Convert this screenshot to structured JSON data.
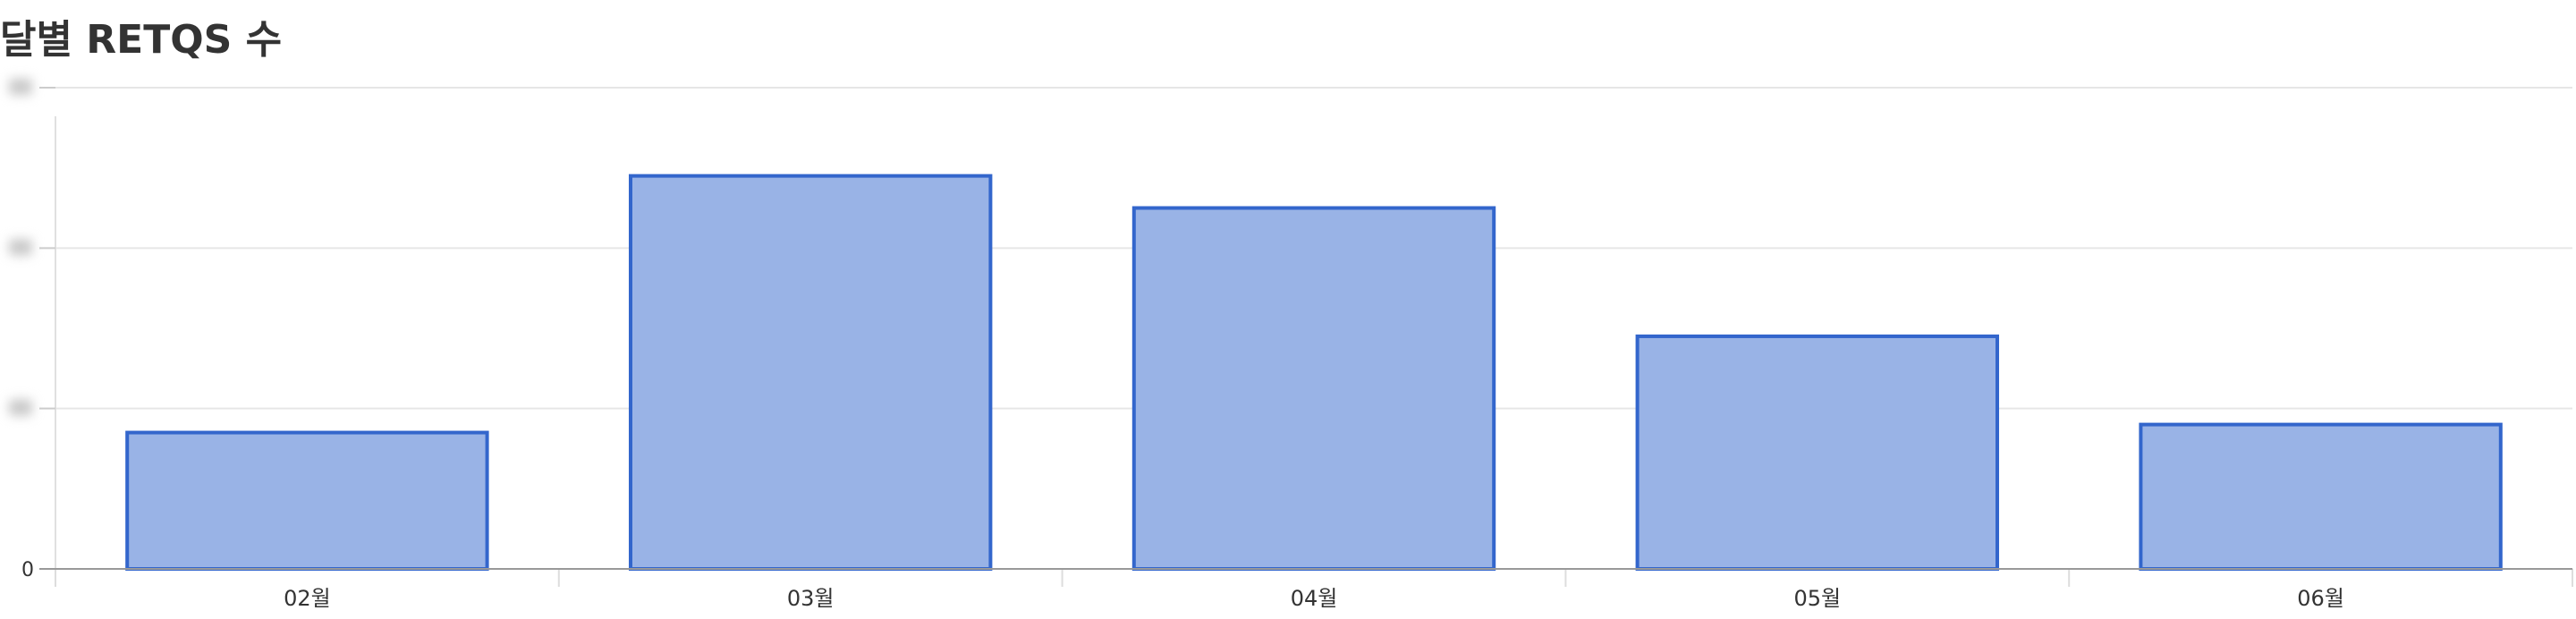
{
  "chart_data": {
    "type": "bar",
    "title": "달별 RETQS 수",
    "categories": [
      "02월",
      "03월",
      "04월",
      "05월",
      "06월"
    ],
    "series": [
      {
        "values": [
          17,
          49,
          45,
          29,
          18
        ]
      }
    ],
    "ylim": [
      0,
      60
    ],
    "y_ticks": [
      "0",
      "",
      "",
      ""
    ],
    "grid": true,
    "legend": "none",
    "colors": {
      "bar_fill": "#99b3e6",
      "bar_stroke": "#3366cc",
      "grid": "#e6e6e6",
      "axis": "#999999",
      "text": "#333333"
    }
  }
}
